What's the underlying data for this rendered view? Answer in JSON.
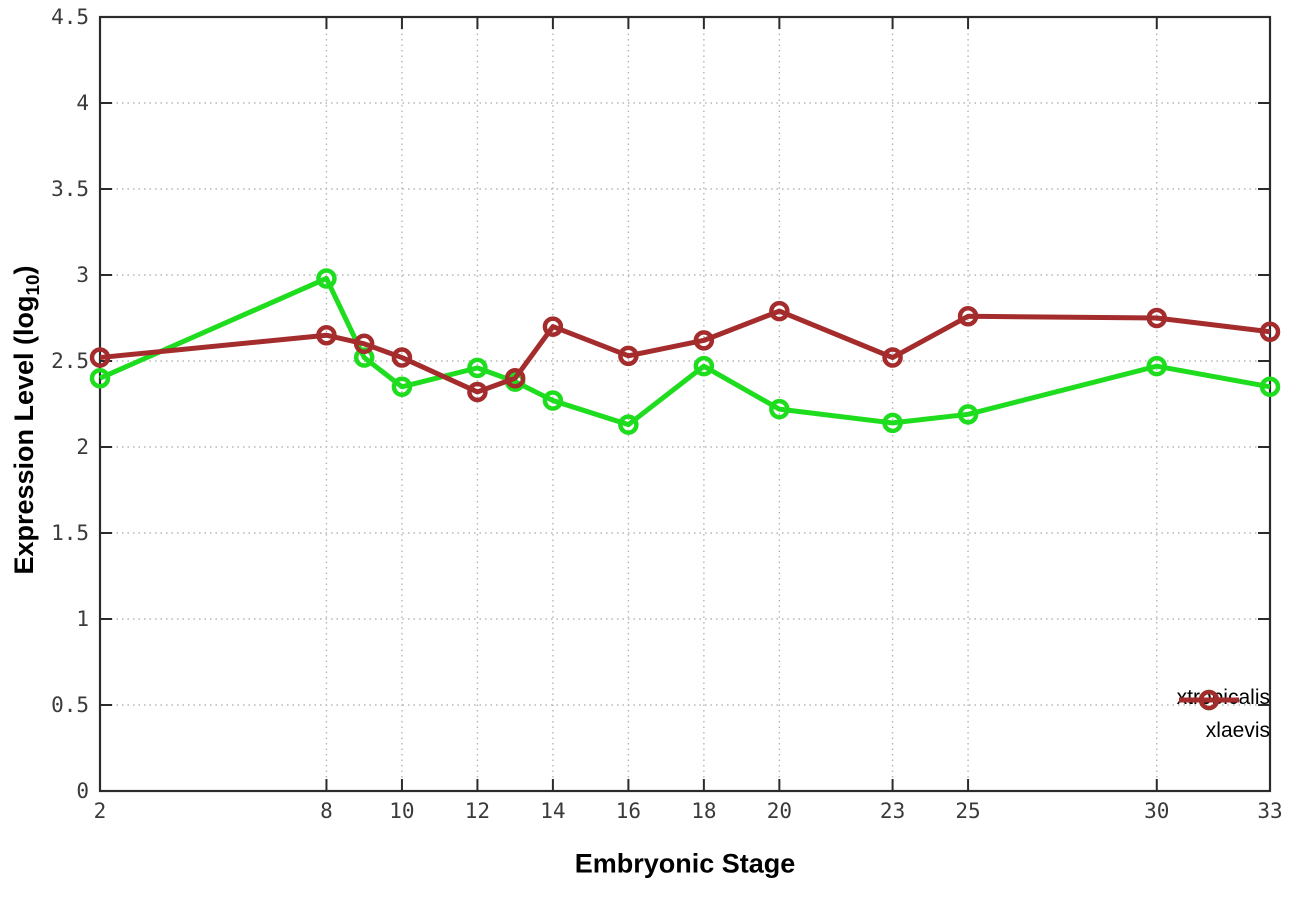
{
  "chart_data": {
    "type": "line",
    "title": "",
    "xlabel": "Embryonic Stage",
    "ylabel_main": "Expression Level (log",
    "ylabel_sub": "10",
    "ylabel_close": ")",
    "x": [
      2,
      8,
      9,
      10,
      12,
      13,
      14,
      16,
      18,
      20,
      23,
      25,
      30,
      33
    ],
    "xticks": [
      2,
      8,
      10,
      12,
      14,
      16,
      18,
      20,
      23,
      25,
      30,
      33
    ],
    "yticks": [
      0,
      0.5,
      1,
      1.5,
      2,
      2.5,
      3,
      3.5,
      4,
      4.5
    ],
    "xlim": [
      2,
      33
    ],
    "ylim": [
      0,
      4.5
    ],
    "grid": true,
    "legend_position": "bottom-right-inside",
    "series": [
      {
        "name": "xtropicalis",
        "color": "#1edc1e",
        "values": [
          2.4,
          2.98,
          2.52,
          2.35,
          2.46,
          2.38,
          2.27,
          2.13,
          2.47,
          2.22,
          2.14,
          2.19,
          2.47,
          2.35
        ]
      },
      {
        "name": "xlaevis",
        "color": "#a42c2c",
        "values": [
          2.52,
          2.65,
          2.6,
          2.52,
          2.32,
          2.4,
          2.7,
          2.53,
          2.62,
          2.79,
          2.52,
          2.76,
          2.75,
          2.67
        ]
      }
    ]
  },
  "colors": {
    "background": "#ffffff",
    "axis": "#2b2b2b",
    "grid": "#b5b5b5",
    "tick_label": "#3a3a3a",
    "text": "#000000"
  }
}
